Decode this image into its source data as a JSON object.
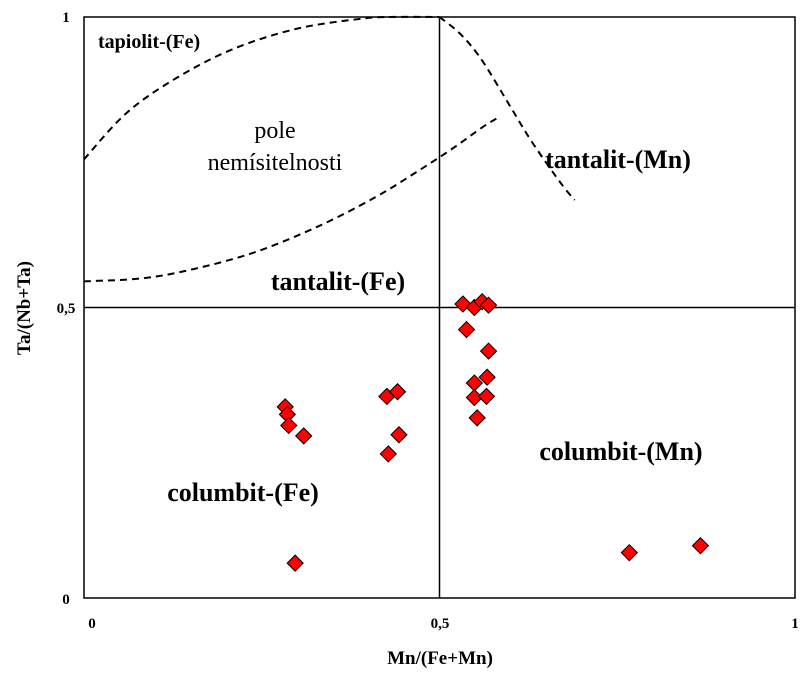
{
  "chart_data": {
    "type": "scatter",
    "xlabel": "Mn/(Fe+Mn)",
    "ylabel": "Ta/(Nb+Ta)",
    "xlim": [
      0,
      1
    ],
    "ylim": [
      0,
      1
    ],
    "x_ticks": [
      "0",
      "0,5",
      "1"
    ],
    "y_ticks": [
      "0",
      "0,5",
      "1"
    ],
    "grid": false,
    "legend": "none",
    "marker": {
      "shape": "diamond",
      "fill": "#ff0000",
      "stroke": "#000000"
    },
    "series": [
      {
        "points": [
          {
            "x": 0.283,
            "y": 0.329
          },
          {
            "x": 0.286,
            "y": 0.316
          },
          {
            "x": 0.288,
            "y": 0.297
          },
          {
            "x": 0.309,
            "y": 0.279
          },
          {
            "x": 0.297,
            "y": 0.06
          },
          {
            "x": 0.426,
            "y": 0.347
          },
          {
            "x": 0.441,
            "y": 0.355
          },
          {
            "x": 0.428,
            "y": 0.248
          },
          {
            "x": 0.443,
            "y": 0.281
          },
          {
            "x": 0.533,
            "y": 0.506
          },
          {
            "x": 0.549,
            "y": 0.5
          },
          {
            "x": 0.56,
            "y": 0.51
          },
          {
            "x": 0.569,
            "y": 0.504
          },
          {
            "x": 0.538,
            "y": 0.462
          },
          {
            "x": 0.569,
            "y": 0.425
          },
          {
            "x": 0.567,
            "y": 0.38
          },
          {
            "x": 0.549,
            "y": 0.37
          },
          {
            "x": 0.549,
            "y": 0.345
          },
          {
            "x": 0.566,
            "y": 0.347
          },
          {
            "x": 0.553,
            "y": 0.31
          },
          {
            "x": 0.767,
            "y": 0.078
          },
          {
            "x": 0.867,
            "y": 0.09
          }
        ]
      }
    ],
    "region_labels": {
      "tapiolit_fe": "tapiolit-(Fe)",
      "pole": "pole",
      "nemisitelnosti": "nemísitelnosti",
      "tantalit_mn": "tantalit-(Mn)",
      "tantalit_fe": "tantalit-(Fe)",
      "columbit_mn": "columbit-(Mn)",
      "columbit_fe": "columbit-(Fe)"
    },
    "dividers": {
      "x": 0.5,
      "y": 0.5
    },
    "boundaries": [
      {
        "style": "dashed",
        "points": [
          [
            0,
            0.755
          ],
          [
            0.06,
            0.835
          ],
          [
            0.13,
            0.895
          ],
          [
            0.21,
            0.945
          ],
          [
            0.3,
            0.98
          ],
          [
            0.39,
            0.997
          ],
          [
            0.43,
            1.0
          ],
          [
            0.5,
            1.0
          ]
        ]
      },
      {
        "style": "dashed",
        "points": [
          [
            0.5,
            1.0
          ],
          [
            0.53,
            0.97
          ],
          [
            0.56,
            0.925
          ],
          [
            0.6,
            0.845
          ],
          [
            0.63,
            0.785
          ],
          [
            0.67,
            0.715
          ],
          [
            0.69,
            0.685
          ]
        ]
      },
      {
        "style": "dashed",
        "points": [
          [
            0,
            0.545
          ],
          [
            0.08,
            0.55
          ],
          [
            0.15,
            0.565
          ],
          [
            0.24,
            0.595
          ],
          [
            0.33,
            0.64
          ],
          [
            0.41,
            0.69
          ],
          [
            0.47,
            0.735
          ],
          [
            0.52,
            0.775
          ],
          [
            0.56,
            0.81
          ],
          [
            0.58,
            0.825
          ]
        ]
      }
    ]
  }
}
